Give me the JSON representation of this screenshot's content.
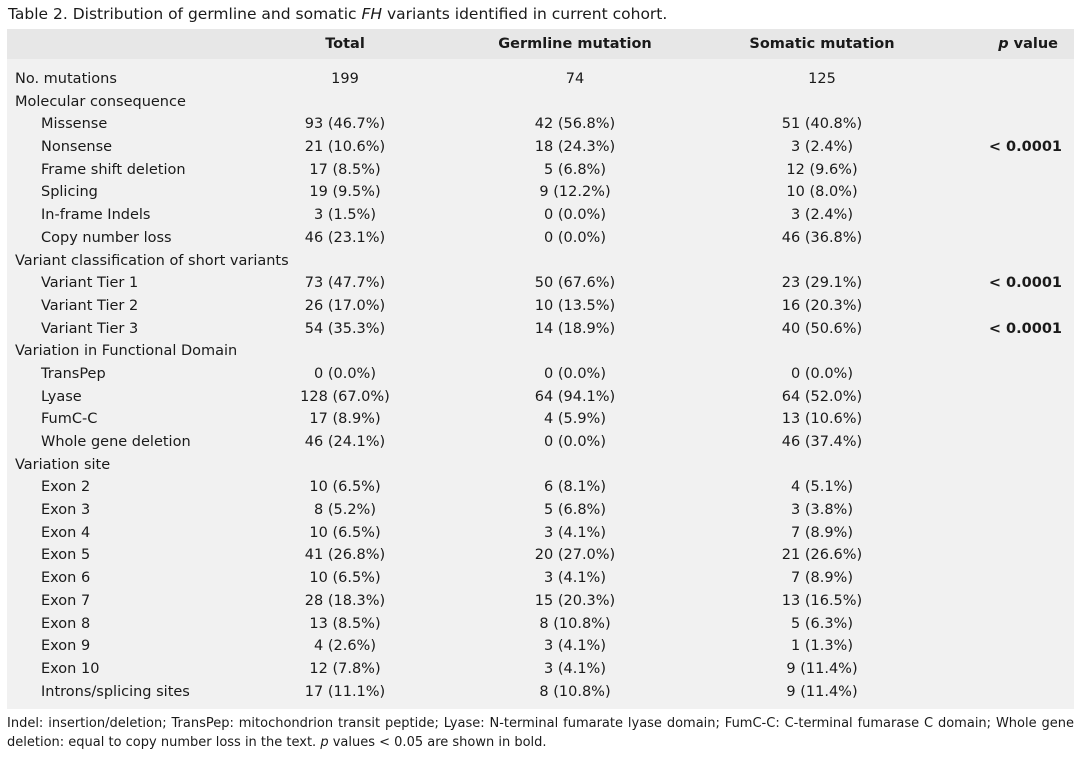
{
  "caption": {
    "prefix": "Table 2. Distribution of germline and somatic ",
    "gene": "FH",
    "suffix": " variants identified in current cohort."
  },
  "header": {
    "total": "Total",
    "germline": "Germline mutation",
    "somatic": "Somatic mutation",
    "p_italic": "p",
    "p_rest": " value"
  },
  "rows": [
    {
      "label": "No. mutations",
      "total": "199",
      "germline": "74",
      "somatic": "125",
      "p": ""
    },
    {
      "label": "Molecular consequence",
      "total": "",
      "germline": "",
      "somatic": "",
      "p": ""
    },
    {
      "label": "Missense",
      "sub": true,
      "total": "93 (46.7%)",
      "germline": "42 (56.8%)",
      "somatic": "51 (40.8%)",
      "p": ""
    },
    {
      "label": "Nonsense",
      "sub": true,
      "total": "21 (10.6%)",
      "germline": "18 (24.3%)",
      "somatic": "3 (2.4%)",
      "p": "< 0.0001"
    },
    {
      "label": "Frame shift deletion",
      "sub": true,
      "total": "17 (8.5%)",
      "germline": "5 (6.8%)",
      "somatic": "12 (9.6%)",
      "p": ""
    },
    {
      "label": "Splicing",
      "sub": true,
      "total": "19 (9.5%)",
      "germline": "9 (12.2%)",
      "somatic": "10 (8.0%)",
      "p": ""
    },
    {
      "label": "In-frame Indels",
      "sub": true,
      "total": "3 (1.5%)",
      "germline": "0 (0.0%)",
      "somatic": "3 (2.4%)",
      "p": ""
    },
    {
      "label": "Copy number loss",
      "sub": true,
      "total": "46 (23.1%)",
      "germline": "0 (0.0%)",
      "somatic": "46 (36.8%)",
      "p": ""
    },
    {
      "label": "Variant classification of short variants",
      "total": "",
      "germline": "",
      "somatic": "",
      "p": ""
    },
    {
      "label": "Variant Tier 1",
      "sub": true,
      "total": "73 (47.7%)",
      "germline": "50 (67.6%)",
      "somatic": "23 (29.1%)",
      "p": "< 0.0001"
    },
    {
      "label": "Variant Tier 2",
      "sub": true,
      "total": "26 (17.0%)",
      "germline": "10 (13.5%)",
      "somatic": "16 (20.3%)",
      "p": ""
    },
    {
      "label": "Variant Tier 3",
      "sub": true,
      "total": "54 (35.3%)",
      "germline": "14 (18.9%)",
      "somatic": "40 (50.6%)",
      "p": "< 0.0001"
    },
    {
      "label": "Variation in Functional Domain",
      "total": "",
      "germline": "",
      "somatic": "",
      "p": ""
    },
    {
      "label": "TransPep",
      "sub": true,
      "total": "0 (0.0%)",
      "germline": "0 (0.0%)",
      "somatic": "0 (0.0%)",
      "p": ""
    },
    {
      "label": "Lyase",
      "sub": true,
      "total": "128 (67.0%)",
      "germline": "64 (94.1%)",
      "somatic": "64 (52.0%)",
      "p": ""
    },
    {
      "label": "FumC-C",
      "sub": true,
      "total": "17 (8.9%)",
      "germline": "4 (5.9%)",
      "somatic": "13 (10.6%)",
      "p": ""
    },
    {
      "label": "Whole gene deletion",
      "sub": true,
      "total": "46 (24.1%)",
      "germline": "0 (0.0%)",
      "somatic": "46 (37.4%)",
      "p": ""
    },
    {
      "label": "Variation site",
      "total": "",
      "germline": "",
      "somatic": "",
      "p": ""
    },
    {
      "label": "Exon 2",
      "sub": true,
      "total": "10 (6.5%)",
      "germline": "6 (8.1%)",
      "somatic": "4 (5.1%)",
      "p": ""
    },
    {
      "label": "Exon 3",
      "sub": true,
      "total": "8 (5.2%)",
      "germline": "5 (6.8%)",
      "somatic": "3 (3.8%)",
      "p": ""
    },
    {
      "label": "Exon 4",
      "sub": true,
      "total": "10 (6.5%)",
      "germline": "3 (4.1%)",
      "somatic": "7 (8.9%)",
      "p": ""
    },
    {
      "label": "Exon 5",
      "sub": true,
      "total": "41 (26.8%)",
      "germline": "20 (27.0%)",
      "somatic": "21 (26.6%)",
      "p": ""
    },
    {
      "label": "Exon 6",
      "sub": true,
      "total": "10 (6.5%)",
      "germline": "3 (4.1%)",
      "somatic": "7 (8.9%)",
      "p": ""
    },
    {
      "label": "Exon 7",
      "sub": true,
      "total": "28 (18.3%)",
      "germline": "15 (20.3%)",
      "somatic": "13 (16.5%)",
      "p": ""
    },
    {
      "label": "Exon 8",
      "sub": true,
      "total": "13 (8.5%)",
      "germline": "8 (10.8%)",
      "somatic": "5 (6.3%)",
      "p": ""
    },
    {
      "label": "Exon 9",
      "sub": true,
      "total": "4 (2.6%)",
      "germline": "3 (4.1%)",
      "somatic": "1 (1.3%)",
      "p": ""
    },
    {
      "label": "Exon 10",
      "sub": true,
      "total": "12 (7.8%)",
      "germline": "3 (4.1%)",
      "somatic": "9 (11.4%)",
      "p": ""
    },
    {
      "label": "Introns/splicing sites",
      "sub": true,
      "total": "17 (11.1%)",
      "germline": "8 (10.8%)",
      "somatic": "9 (11.4%)",
      "p": ""
    }
  ],
  "footnote": {
    "text": "Indel: insertion/deletion; TransPep: mitochondrion transit peptide; Lyase: N-terminal fumarate lyase domain; FumC-C: C-terminal fumarase C domain; Whole gene deletion: equal to copy number loss in the text. ",
    "p_italic": "p",
    "text_end": " values < 0.05 are shown in bold."
  },
  "colors": {
    "header_bg": "#e7e7e7",
    "body_bg": "#f1f1f1"
  }
}
